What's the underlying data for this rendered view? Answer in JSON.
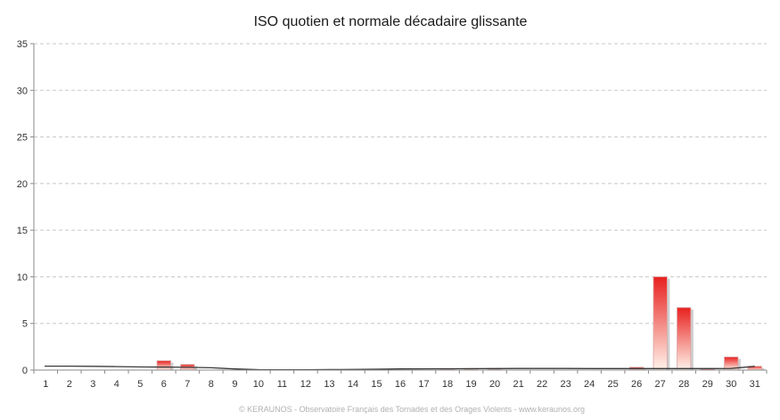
{
  "chart_data": {
    "type": "bar",
    "title": "ISO quotien et normale décadaire glissante",
    "xlabel": "",
    "ylabel": "",
    "ylim": [
      0,
      35
    ],
    "yticks": [
      0,
      5,
      10,
      15,
      20,
      25,
      30,
      35
    ],
    "grid": true,
    "legend": "none",
    "categories": [
      "1",
      "2",
      "3",
      "4",
      "5",
      "6",
      "7",
      "8",
      "9",
      "10",
      "11",
      "12",
      "13",
      "14",
      "15",
      "16",
      "17",
      "18",
      "19",
      "20",
      "21",
      "22",
      "23",
      "24",
      "25",
      "26",
      "27",
      "28",
      "29",
      "30",
      "31"
    ],
    "series": [
      {
        "kind": "bar",
        "values": [
          0,
          0,
          0,
          0,
          0,
          1.0,
          0.6,
          0,
          0,
          0,
          0,
          0,
          0,
          0,
          0,
          0,
          0,
          0.05,
          0.05,
          0.05,
          0,
          0,
          0,
          0,
          0,
          0.3,
          10.0,
          6.7,
          0.1,
          1.4,
          0.4
        ],
        "color_top": "#e8201e",
        "color_bottom": "#fff3ea"
      },
      {
        "kind": "line",
        "values": [
          0.42,
          0.42,
          0.4,
          0.37,
          0.33,
          0.32,
          0.3,
          0.25,
          0.12,
          0.05,
          0.04,
          0.04,
          0.06,
          0.07,
          0.1,
          0.12,
          0.13,
          0.14,
          0.15,
          0.16,
          0.17,
          0.17,
          0.17,
          0.16,
          0.16,
          0.16,
          0.16,
          0.16,
          0.16,
          0.17,
          0.4
        ],
        "color": "#3a3a3a"
      }
    ]
  },
  "footer": {
    "credit": "© KERAUNOS - Observatoire Français des Tornades et des Orages Violents - www.keraunos.org"
  }
}
